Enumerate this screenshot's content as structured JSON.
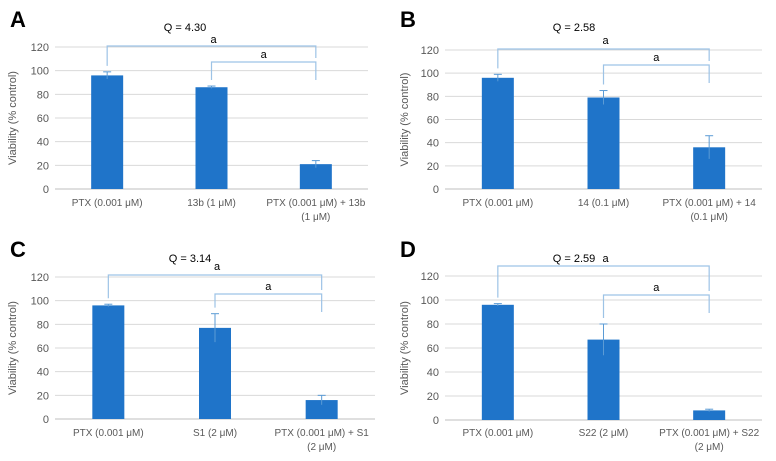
{
  "colors": {
    "bar": "#1f74c9",
    "bracket": "#9dc3e6",
    "grid": "#d9d9d9",
    "text": "#595959"
  },
  "chart_data": [
    {
      "type": "bar",
      "panel_label": "A",
      "q_label": "Q = 4.30",
      "ylabel": "Viability (% control)",
      "ylim": [
        0,
        120
      ],
      "yticks": [
        "0",
        "20",
        "40",
        "60",
        "80",
        "100",
        "120"
      ],
      "categories": [
        [
          "PTX (0.001 μM)"
        ],
        [
          "13b (1 μM)"
        ],
        [
          "PTX (0.001 μM) + 13b",
          "(1 μM)"
        ]
      ],
      "values": [
        96,
        86,
        21
      ],
      "errors": [
        3,
        1,
        3
      ],
      "significance": [
        "a",
        "a"
      ]
    },
    {
      "type": "bar",
      "panel_label": "B",
      "q_label": "Q = 2.58",
      "ylabel": "Viability (% control)",
      "ylim": [
        0,
        120
      ],
      "yticks": [
        "0",
        "20",
        "40",
        "60",
        "80",
        "100",
        "120"
      ],
      "categories": [
        [
          "PTX (0.001 μM)"
        ],
        [
          "14 (0.1 μM)"
        ],
        [
          "PTX (0.001 μM) + 14",
          "(0.1 μM)"
        ]
      ],
      "values": [
        96,
        79,
        36
      ],
      "errors": [
        3,
        6,
        10
      ],
      "significance": [
        "a",
        "a"
      ]
    },
    {
      "type": "bar",
      "panel_label": "C",
      "q_label": "Q = 3.14",
      "ylabel": "Viability (% control)",
      "ylim": [
        0,
        120
      ],
      "yticks": [
        "0",
        "20",
        "40",
        "60",
        "80",
        "100",
        "120"
      ],
      "categories": [
        [
          "PTX (0.001 μM)"
        ],
        [
          "S1 (2 μM)"
        ],
        [
          "PTX (0.001 μM) + S1",
          "(2 μM)"
        ]
      ],
      "values": [
        96,
        77,
        16
      ],
      "errors": [
        1,
        12,
        4
      ],
      "significance": [
        "a",
        "a"
      ]
    },
    {
      "type": "bar",
      "panel_label": "D",
      "q_label": "Q = 2.59",
      "ylabel": "Viability (% control)",
      "ylim": [
        0,
        120
      ],
      "yticks": [
        "0",
        "20",
        "40",
        "60",
        "80",
        "100",
        "120"
      ],
      "categories": [
        [
          "PTX (0.001 μM)"
        ],
        [
          "S22 (2 μM)"
        ],
        [
          "PTX (0.001 μM) + S22",
          "(2 μM)"
        ]
      ],
      "values": [
        96,
        67,
        8
      ],
      "errors": [
        1,
        13,
        1
      ],
      "significance": [
        "a",
        "a"
      ]
    }
  ]
}
